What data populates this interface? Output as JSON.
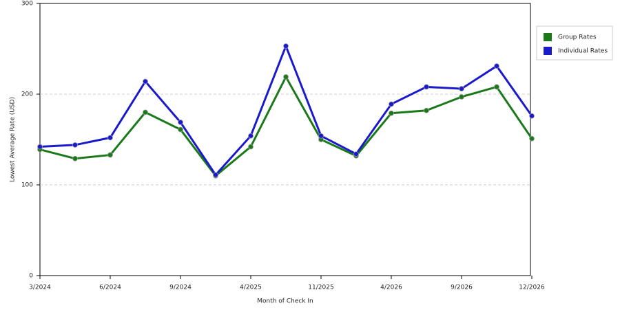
{
  "chart_data": {
    "type": "line",
    "xlabel": "Month of Check In",
    "ylabel": "Lowest Average Rate (USD)",
    "categories": [
      "3/2024",
      null,
      "6/2024",
      null,
      "9/2024",
      null,
      "4/2025",
      null,
      "11/2025",
      null,
      "4/2026",
      null,
      "9/2026",
      null,
      "12/2026"
    ],
    "series": [
      {
        "name": "Group Rates",
        "color": "#1a7a1a",
        "values": [
          139,
          129,
          133,
          180,
          161,
          110,
          142,
          219,
          150,
          132,
          179,
          182,
          197,
          208,
          151
        ]
      },
      {
        "name": "Individual Rates",
        "color": "#1a1acc",
        "values": [
          142,
          144,
          152,
          214,
          169,
          111,
          154,
          253,
          154,
          134,
          189,
          208,
          206,
          231,
          176
        ]
      }
    ],
    "ylim": [
      0,
      300
    ],
    "yticks": [
      0,
      100,
      200,
      300
    ],
    "grid": true,
    "legend": "right"
  }
}
